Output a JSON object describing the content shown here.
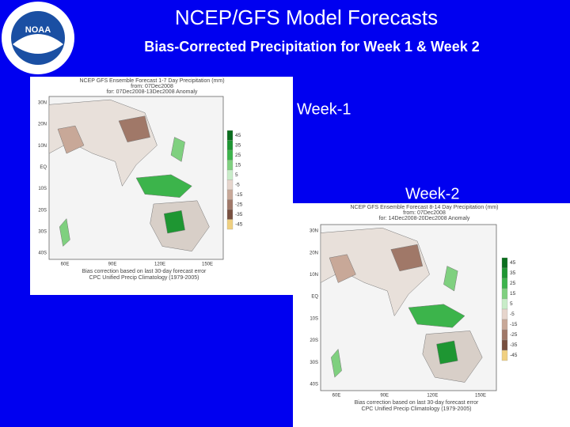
{
  "header": {
    "title": "NCEP/GFS Model Forecasts",
    "subtitle": "Bias-Corrected Precipitation for Week 1 & Week 2"
  },
  "labels": {
    "week1": "Week-1",
    "week2": "Week-2"
  },
  "maps": [
    {
      "heading": [
        "NCEP GFS Ensemble Forecast 1-7 Day Precipitation (mm)",
        "from: 07Dec2008",
        "for: 07Dec2008-13Dec2008 Anomaly"
      ],
      "footer": [
        "Bias correction based on last 30-day forecast error",
        "CPC Unified Precip Climatology (1979-2005)"
      ],
      "legend": [
        "45",
        "35",
        "25",
        "15",
        "5",
        "-5",
        "-15",
        "-25",
        "-35",
        "-45"
      ],
      "y_axis": [
        "30N",
        "20N",
        "10N",
        "EQ",
        "10S",
        "20S",
        "30S",
        "40S"
      ],
      "x_axis": [
        "60E",
        "90E",
        "120E",
        "150E"
      ]
    },
    {
      "heading": [
        "NCEP GFS Ensemble Forecast 8-14 Day Precipitation (mm)",
        "from: 07Dec2008",
        "for: 14Dec2008-20Dec2008 Anomaly"
      ],
      "footer": [
        "Bias correction based on last 30-day forecast error",
        "CPC Unified Precip Climatology (1979-2005)"
      ],
      "legend": [
        "45",
        "35",
        "25",
        "15",
        "5",
        "-5",
        "-15",
        "-25",
        "-35",
        "-45"
      ],
      "y_axis": [
        "30N",
        "20N",
        "10N",
        "EQ",
        "10S",
        "20S",
        "30S",
        "40S"
      ],
      "x_axis": [
        "60E",
        "90E",
        "120E",
        "150E"
      ]
    }
  ]
}
